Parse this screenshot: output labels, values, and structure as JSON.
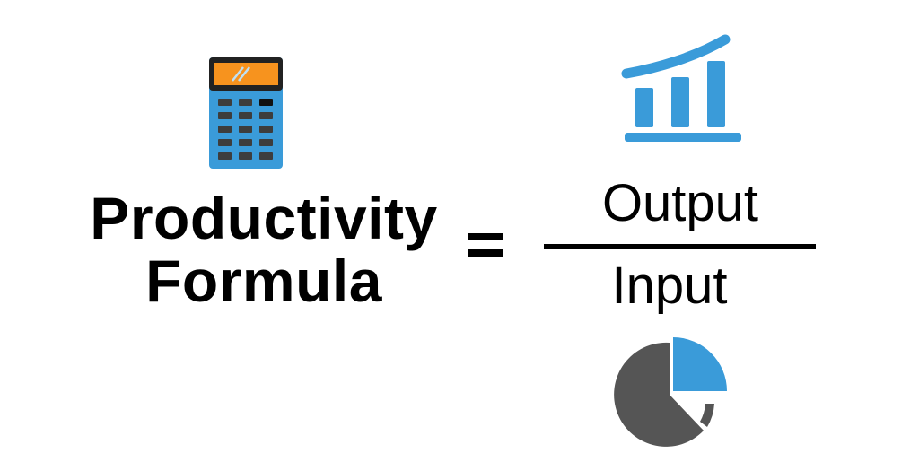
{
  "formula": {
    "name_line1": "Productivity",
    "name_line2": "Formula",
    "equals": "=",
    "numerator": "Output",
    "denominator": "Input"
  },
  "icons": {
    "top_left": "calculator-icon",
    "top_right": "bar-chart-trend-icon",
    "bottom_right": "pie-chart-icon"
  },
  "colors": {
    "text": "#000000",
    "accent_blue": "#3a9bd9",
    "calculator_screen": "#f7931e",
    "dark_gray": "#555555",
    "background": "#ffffff"
  }
}
